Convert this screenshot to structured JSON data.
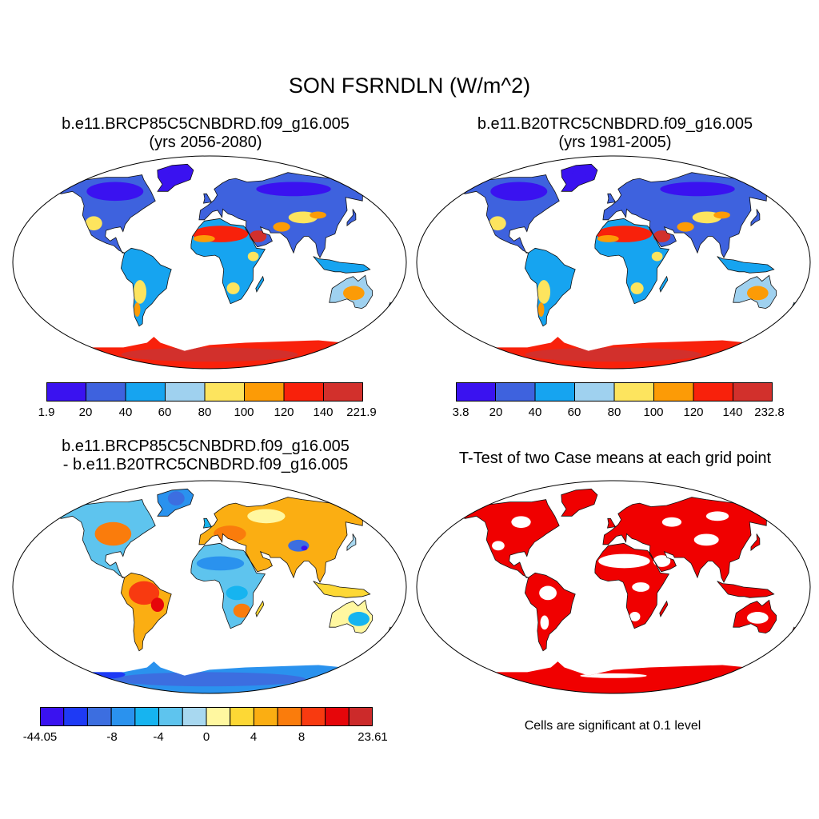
{
  "title": "SON FSRNDLN (W/m^2)",
  "panels": [
    {
      "title_line1": "b.e11.BRCP85C5CNBDRD.f09_g16.005",
      "title_line2": "(yrs 2056-2080)",
      "colorbar": {
        "colors": [
          "#3a12f0",
          "#3e62de",
          "#16a4f0",
          "#9fd1ef",
          "#fde45e",
          "#fc9b06",
          "#f8210b",
          "#d2302c"
        ],
        "ticks": [
          "1.9",
          "20",
          "40",
          "60",
          "80",
          "100",
          "120",
          "140",
          "221.9"
        ]
      }
    },
    {
      "title_line1": "b.e11.B20TRC5CNBDRD.f09_g16.005",
      "title_line2": "(yrs 1981-2005)",
      "colorbar": {
        "colors": [
          "#3a12f0",
          "#3e62de",
          "#16a4f0",
          "#9fd1ef",
          "#fde45e",
          "#fc9b06",
          "#f8210b",
          "#d2302c"
        ],
        "ticks": [
          "3.8",
          "20",
          "40",
          "60",
          "80",
          "100",
          "120",
          "140",
          "232.8"
        ]
      }
    },
    {
      "title_line1": "b.e11.BRCP85C5CNBDRD.f09_g16.005",
      "title_line2": "- b.e11.B20TRC5CNBDRD.f09_g16.005",
      "colorbar": {
        "colors": [
          "#3a12f0",
          "#1e3af5",
          "#3c6ee0",
          "#2a92ee",
          "#16b4f0",
          "#5ec4ee",
          "#a8d8f0",
          "#fff7a0",
          "#fdd835",
          "#fbae12",
          "#fa7c0c",
          "#f83a10",
          "#e6060a",
          "#cc2a2a"
        ],
        "ticks": [
          "-44.05",
          "-8",
          "-4",
          "0",
          "4",
          "8",
          "23.61"
        ]
      }
    },
    {
      "title_line1": "T-Test of two Case means at each grid point",
      "note": "Cells are significant at 0.1 level",
      "sig_color": "#f00000"
    }
  ]
}
